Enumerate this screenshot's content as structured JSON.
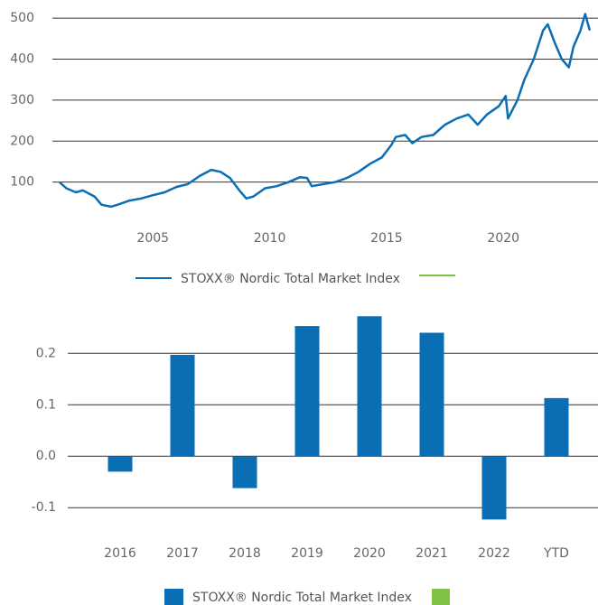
{
  "chart_data": [
    {
      "type": "line",
      "x": [
        2001.0,
        2001.3,
        2001.7,
        2002.0,
        2002.5,
        2002.8,
        2003.2,
        2003.5,
        2004.0,
        2004.5,
        2005.0,
        2005.5,
        2006.0,
        2006.5,
        2007.0,
        2007.5,
        2007.9,
        2008.3,
        2008.7,
        2009.0,
        2009.3,
        2009.8,
        2010.3,
        2010.8,
        2011.3,
        2011.6,
        2011.8,
        2012.3,
        2012.8,
        2013.3,
        2013.8,
        2014.3,
        2014.8,
        2015.2,
        2015.4,
        2015.8,
        2016.1,
        2016.5,
        2017.0,
        2017.5,
        2018.0,
        2018.5,
        2018.9,
        2019.3,
        2019.8,
        2020.1,
        2020.2,
        2020.6,
        2020.9,
        2021.3,
        2021.7,
        2021.9,
        2022.2,
        2022.5,
        2022.8,
        2023.0,
        2023.3,
        2023.5,
        2023.7
      ],
      "series": [
        {
          "name": "STOXX® Nordic Total Market Index",
          "color": "#0a6eb4",
          "values": [
            100,
            85,
            75,
            80,
            65,
            45,
            40,
            45,
            55,
            60,
            68,
            75,
            88,
            95,
            115,
            130,
            125,
            110,
            80,
            60,
            65,
            85,
            90,
            100,
            112,
            110,
            90,
            95,
            100,
            110,
            125,
            145,
            160,
            190,
            210,
            215,
            195,
            210,
            215,
            240,
            255,
            265,
            240,
            265,
            285,
            310,
            255,
            300,
            350,
            400,
            470,
            485,
            440,
            400,
            380,
            430,
            470,
            510,
            470
          ]
        }
      ],
      "xlim": [
        2000.7,
        2024.05
      ],
      "xticks": [
        2005,
        2010,
        2015,
        2020
      ],
      "ylim": [
        20,
        520
      ],
      "yticks": [
        100,
        200,
        300,
        400,
        500
      ],
      "grid": true
    },
    {
      "type": "bar",
      "categories": [
        "2016",
        "2017",
        "2018",
        "2019",
        "2020",
        "2021",
        "2022",
        "YTD"
      ],
      "series": [
        {
          "name": "STOXX® Nordic Total Market Index",
          "color": "#0a6eb4",
          "values": [
            -0.03,
            0.197,
            -0.062,
            0.253,
            0.272,
            0.24,
            -0.123,
            0.113
          ]
        }
      ],
      "ylim": [
        -0.14,
        0.29
      ],
      "yticks": [
        -0.1,
        {
          "value": 0,
          "label": "0.0"
        },
        0.1,
        0.2
      ],
      "grid": true
    }
  ]
}
